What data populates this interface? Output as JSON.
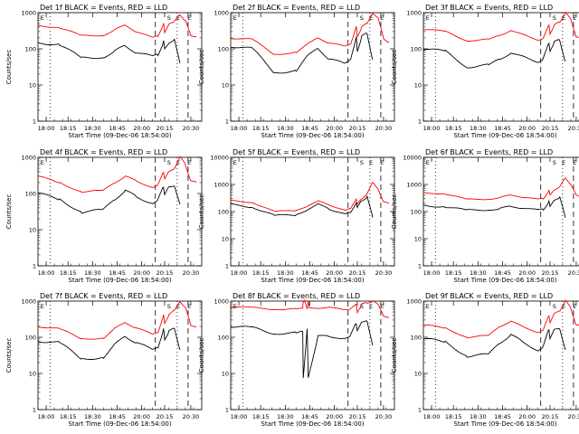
{
  "figure": {
    "background": "#ffffff",
    "colors": {
      "events": "#000000",
      "lld": "#ff0000",
      "axes": "#000000"
    }
  },
  "chart_data": [
    {
      "type": "line",
      "title": "Det 1f BLACK = Events, RED = LLD",
      "xlabel": "Start Time (09-Dec-06 18:54:00)",
      "ylabel": "Counts/sec",
      "xtick_labels": [
        "18:00",
        "18:15",
        "18:30",
        "18:45",
        "20:00",
        "20:15",
        "20:30"
      ],
      "ytick_labels": [
        "1",
        "10",
        "100",
        "1000"
      ],
      "ylim": [
        1,
        1000
      ],
      "yscale": "log",
      "markers": [
        "E",
        "S",
        "E",
        "E"
      ],
      "series": [
        {
          "name": "LLD",
          "color": "#ff0000",
          "x": [
            0,
            4,
            8,
            12,
            14,
            16,
            18,
            21,
            22,
            23,
            23.2,
            24,
            25,
            26,
            27,
            28,
            29
          ],
          "y": [
            450,
            380,
            230,
            240,
            330,
            450,
            300,
            200,
            230,
            500,
            280,
            500,
            560,
            900,
            600,
            230,
            220
          ]
        },
        {
          "name": "Events",
          "color": "#000000",
          "x": [
            0,
            4,
            8,
            12,
            14,
            16,
            18,
            21,
            22,
            23,
            23.2,
            24,
            25,
            26
          ],
          "y": [
            150,
            130,
            55,
            60,
            85,
            120,
            80,
            60,
            70,
            160,
            100,
            150,
            170,
            40
          ]
        }
      ]
    },
    {
      "type": "line",
      "title": "Det 2f BLACK = Events, RED = LLD",
      "xlabel": "Start Time (09-Dec-06 18:54:00)",
      "ylabel": "Counts/sec",
      "xtick_labels": [
        "18:00",
        "18:15",
        "18:30",
        "18:45",
        "20:00",
        "20:15",
        "20:30"
      ],
      "ytick_labels": [
        "1",
        "10",
        "100",
        "1000"
      ],
      "ylim": [
        1,
        1000
      ],
      "yscale": "log",
      "markers": [
        "E",
        "S",
        "E",
        "E"
      ],
      "series": [
        {
          "name": "LLD",
          "color": "#ff0000",
          "x": [
            0,
            4,
            8,
            12,
            14,
            16,
            18,
            21,
            22,
            23,
            23.2,
            24,
            25,
            26,
            27,
            28,
            29
          ],
          "y": [
            200,
            180,
            70,
            80,
            130,
            210,
            140,
            120,
            140,
            400,
            220,
            400,
            500,
            1000,
            700,
            200,
            150
          ]
        },
        {
          "name": "Events",
          "color": "#000000",
          "x": [
            0,
            4,
            8,
            12,
            14,
            16,
            18,
            21,
            22,
            23,
            23.2,
            24,
            25,
            26
          ],
          "y": [
            120,
            100,
            22,
            25,
            60,
            110,
            50,
            40,
            55,
            200,
            90,
            220,
            260,
            50
          ]
        }
      ]
    },
    {
      "type": "line",
      "title": "Det 3f BLACK = Events, RED = LLD",
      "xlabel": "Start Time (09-Dec-06 18:54:00)",
      "ylabel": "Counts/sec",
      "xtick_labels": [
        "18:00",
        "18:15",
        "18:30",
        "18:45",
        "20:00",
        "20:15",
        "20:30"
      ],
      "ytick_labels": [
        "1",
        "10",
        "100",
        "1000"
      ],
      "ylim": [
        1,
        1000
      ],
      "yscale": "log",
      "markers": [
        "E",
        "S",
        "E",
        "E"
      ],
      "series": [
        {
          "name": "LLD",
          "color": "#ff0000",
          "x": [
            0,
            4,
            8,
            12,
            14,
            16,
            18,
            21,
            22,
            23,
            23.2,
            24,
            25,
            26,
            27,
            28,
            29
          ],
          "y": [
            350,
            300,
            170,
            180,
            230,
            330,
            250,
            180,
            200,
            450,
            260,
            450,
            560,
            1000,
            650,
            220,
            200
          ]
        },
        {
          "name": "Events",
          "color": "#000000",
          "x": [
            0,
            4,
            8,
            12,
            14,
            16,
            18,
            21,
            22,
            23,
            23.2,
            24,
            25,
            26
          ],
          "y": [
            100,
            85,
            32,
            35,
            50,
            80,
            60,
            45,
            55,
            140,
            90,
            150,
            180,
            45
          ]
        }
      ]
    },
    {
      "type": "line",
      "title": "Det 4f BLACK = Events, RED = LLD",
      "xlabel": "Start Time (09-Dec-06 18:54:00)",
      "ylabel": "Counts/sec",
      "xtick_labels": [
        "18:00",
        "18:15",
        "18:30",
        "18:45",
        "20:00",
        "20:15",
        "20:30"
      ],
      "ytick_labels": [
        "1",
        "10",
        "100",
        "1000"
      ],
      "ylim": [
        1,
        1000
      ],
      "yscale": "log",
      "markers": [
        "E",
        "S",
        "E",
        "E"
      ],
      "series": [
        {
          "name": "LLD",
          "color": "#ff0000",
          "x": [
            0,
            4,
            8,
            12,
            14,
            16,
            18,
            21,
            22,
            23,
            23.2,
            24,
            25,
            26,
            27,
            28,
            29
          ],
          "y": [
            300,
            200,
            110,
            120,
            200,
            300,
            220,
            150,
            170,
            400,
            250,
            400,
            500,
            1000,
            650,
            220,
            200
          ]
        },
        {
          "name": "Events",
          "color": "#000000",
          "x": [
            0,
            4,
            8,
            12,
            14,
            16,
            18,
            21,
            22,
            23,
            23.2,
            24,
            25,
            26
          ],
          "y": [
            100,
            70,
            30,
            35,
            70,
            120,
            80,
            55,
            65,
            160,
            90,
            150,
            170,
            50
          ]
        }
      ]
    },
    {
      "type": "line",
      "title": "Det 5f BLACK = Events, RED = LLD",
      "xlabel": "Start Time (09-Dec-06 18:54:00)",
      "ylabel": "Counts/sec",
      "xtick_labels": [
        "18:00",
        "18:15",
        "18:30",
        "18:45",
        "20:00",
        "20:15",
        "20:30"
      ],
      "ytick_labels": [
        "1",
        "10",
        "100",
        "1000",
        "10000"
      ],
      "ylim": [
        1,
        10000
      ],
      "yscale": "log",
      "markers": [
        "E",
        "S",
        "E",
        "E"
      ],
      "series": [
        {
          "name": "LLD",
          "color": "#ff0000",
          "x": [
            0,
            4,
            8,
            12,
            14,
            16,
            18,
            21,
            22,
            23,
            23.2,
            24,
            25,
            26,
            27,
            28,
            29
          ],
          "y": [
            250,
            220,
            100,
            110,
            160,
            240,
            180,
            110,
            130,
            300,
            180,
            300,
            450,
            1200,
            700,
            220,
            200
          ]
        },
        {
          "name": "Events",
          "color": "#000000",
          "x": [
            0,
            4,
            8,
            12,
            14,
            16,
            18,
            21,
            22,
            23,
            23.2,
            24,
            25,
            26
          ],
          "y": [
            180,
            150,
            70,
            75,
            120,
            180,
            130,
            80,
            90,
            220,
            130,
            260,
            350,
            60
          ]
        }
      ]
    },
    {
      "type": "line",
      "title": "Det 6f BLACK = Events, RED = LLD",
      "xlabel": "Start Time (09-Dec-06 18:54:00)",
      "ylabel": "Counts/sec",
      "xtick_labels": [
        "18:00",
        "18:15",
        "18:30",
        "18:45",
        "20:00",
        "20:15",
        "20:30"
      ],
      "ytick_labels": [
        "1",
        "10",
        "100",
        "1000",
        "10000"
      ],
      "ylim": [
        1,
        10000
      ],
      "yscale": "log",
      "markers": [
        "E",
        "S",
        "E",
        "E"
      ],
      "series": [
        {
          "name": "LLD",
          "color": "#ff0000",
          "x": [
            0,
            4,
            8,
            12,
            14,
            16,
            18,
            21,
            22,
            23,
            23.2,
            24,
            25,
            26,
            27,
            28,
            29
          ],
          "y": [
            500,
            450,
            280,
            290,
            330,
            400,
            350,
            280,
            300,
            600,
            400,
            650,
            800,
            1800,
            1000,
            400,
            350
          ]
        },
        {
          "name": "Events",
          "color": "#000000",
          "x": [
            0,
            4,
            8,
            12,
            14,
            16,
            18,
            21,
            22,
            23,
            23.2,
            24,
            25,
            26
          ],
          "y": [
            170,
            150,
            110,
            120,
            130,
            150,
            140,
            110,
            120,
            240,
            150,
            280,
            320,
            60
          ]
        }
      ]
    },
    {
      "type": "line",
      "title": "Det 7f BLACK = Events, RED = LLD",
      "xlabel": "Start Time (09-Dec-06 18:54:00)",
      "ylabel": "Counts/sec",
      "xtick_labels": [
        "18:00",
        "18:15",
        "18:30",
        "18:45",
        "20:00",
        "20:15",
        "20:30"
      ],
      "ytick_labels": [
        "1",
        "10",
        "100",
        "1000"
      ],
      "ylim": [
        1,
        1000
      ],
      "yscale": "log",
      "markers": [
        "E",
        "S",
        "E",
        "E"
      ],
      "series": [
        {
          "name": "LLD",
          "color": "#ff0000",
          "x": [
            0,
            4,
            8,
            12,
            14,
            16,
            18,
            21,
            22,
            23,
            23.2,
            24,
            25,
            26,
            27,
            28,
            29
          ],
          "y": [
            200,
            170,
            90,
            95,
            170,
            260,
            180,
            120,
            140,
            400,
            250,
            420,
            550,
            1000,
            650,
            220,
            200
          ]
        },
        {
          "name": "Events",
          "color": "#000000",
          "x": [
            0,
            4,
            8,
            12,
            14,
            16,
            18,
            21,
            22,
            23,
            23.2,
            24,
            25,
            26
          ],
          "y": [
            80,
            70,
            25,
            28,
            60,
            110,
            70,
            45,
            55,
            160,
            90,
            150,
            170,
            45
          ]
        }
      ]
    },
    {
      "type": "line",
      "title": "Det 8f BLACK = Events, RED = LLD",
      "xlabel": "Start Time (09-Dec-06 18:54:00)",
      "ylabel": "Counts/sec",
      "xtick_labels": [
        "18:00",
        "18:15",
        "18:30",
        "18:45",
        "20:00",
        "20:15",
        "20:30"
      ],
      "ytick_labels": [
        "1",
        "10",
        "100",
        "1000"
      ],
      "ylim": [
        1,
        1000
      ],
      "yscale": "log",
      "markers": [
        "E",
        "S",
        "E",
        "E"
      ],
      "series": [
        {
          "name": "LLD",
          "color": "#ff0000",
          "x": [
            0,
            4,
            8,
            12,
            13.2,
            13.3,
            13.5,
            14,
            14.2,
            14.4,
            16,
            18,
            21,
            22,
            23,
            23.2,
            24,
            25,
            26,
            27,
            28,
            29
          ],
          "y": [
            700,
            650,
            600,
            600,
            620,
            1000,
            1000,
            620,
            1000,
            640,
            650,
            650,
            600,
            620,
            800,
            500,
            800,
            900,
            1000,
            800,
            400,
            350
          ]
        },
        {
          "name": "Events",
          "color": "#000000",
          "x": [
            0,
            4,
            8,
            12,
            13.2,
            13.3,
            14,
            14.2,
            16,
            18,
            21,
            22,
            23,
            23.2,
            24,
            25,
            26
          ],
          "y": [
            200,
            180,
            130,
            130,
            140,
            8,
            160,
            8,
            110,
            100,
            100,
            110,
            250,
            150,
            250,
            300,
            60
          ]
        }
      ]
    },
    {
      "type": "line",
      "title": "Det 9f BLACK = Events, RED = LLD",
      "xlabel": "Start Time (09-Dec-06 18:54:00)",
      "ylabel": "Counts/sec",
      "xtick_labels": [
        "18:00",
        "18:15",
        "18:30",
        "18:45",
        "20:00",
        "20:15",
        "20:30"
      ],
      "ytick_labels": [
        "1",
        "10",
        "100",
        "1000"
      ],
      "ylim": [
        1,
        1000
      ],
      "yscale": "log",
      "markers": [
        "E",
        "S",
        "E",
        "E"
      ],
      "series": [
        {
          "name": "LLD",
          "color": "#ff0000",
          "x": [
            0,
            4,
            8,
            12,
            14,
            16,
            18,
            21,
            22,
            23,
            23.2,
            24,
            25,
            26,
            27,
            28,
            29
          ],
          "y": [
            220,
            180,
            100,
            110,
            200,
            280,
            200,
            140,
            160,
            400,
            250,
            450,
            550,
            1000,
            650,
            220,
            200
          ]
        },
        {
          "name": "Events",
          "color": "#000000",
          "x": [
            0,
            4,
            8,
            12,
            14,
            16,
            18,
            21,
            22,
            23,
            23.2,
            24,
            25,
            26
          ],
          "y": [
            90,
            75,
            30,
            33,
            70,
            120,
            75,
            45,
            55,
            170,
            90,
            160,
            180,
            45
          ]
        }
      ]
    }
  ]
}
